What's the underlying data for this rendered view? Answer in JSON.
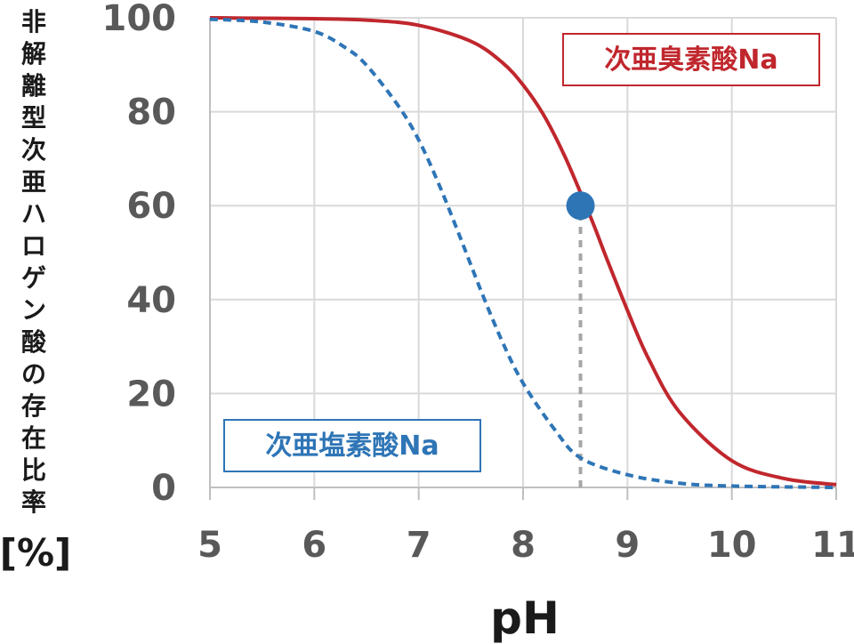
{
  "chart_data": {
    "type": "line",
    "xlabel": "pH",
    "ylabel": "非解離型次亜ハロゲン酸の存在比率",
    "yunit": "[%]",
    "xlim": [
      5,
      11
    ],
    "ylim": [
      0,
      100
    ],
    "xticks": [
      "5",
      "6",
      "7",
      "8",
      "9",
      "10",
      "11"
    ],
    "yticks": [
      "100",
      "80",
      "60",
      "40",
      "20",
      "0"
    ],
    "grid": true,
    "series": [
      {
        "name": "次亜臭素酸Na",
        "color": "#c0272d",
        "style": "solid",
        "x": [
          5.0,
          5.5,
          6.0,
          6.5,
          7.0,
          7.5,
          7.8,
          8.0,
          8.2,
          8.4,
          8.6,
          8.7,
          8.8,
          9.0,
          9.2,
          9.5,
          10.0,
          10.5,
          11.0
        ],
        "y": [
          100,
          99.9,
          99.8,
          99.5,
          98.4,
          95.0,
          90.5,
          85.7,
          79.2,
          70.5,
          60.1,
          54.6,
          48.8,
          37.7,
          27.5,
          16.0,
          5.7,
          1.9,
          0.6
        ]
      },
      {
        "name": "次亜塩素酸Na",
        "color": "#2e75b6",
        "style": "dashed",
        "x": [
          5.0,
          5.5,
          6.0,
          6.3,
          6.5,
          6.8,
          7.0,
          7.2,
          7.4,
          7.6,
          7.8,
          8.0,
          8.3,
          8.55,
          9.0,
          9.5,
          10.0,
          11.0
        ],
        "y": [
          99.7,
          99.1,
          97.1,
          93.6,
          89.9,
          81.4,
          74.0,
          64.2,
          53.1,
          41.7,
          31.1,
          22.2,
          12.4,
          6.3,
          2.7,
          0.9,
          0.3,
          0.0
        ]
      }
    ],
    "highlight_point": {
      "x": 8.55,
      "y": 60,
      "color": "#2e75b6"
    },
    "reference_line": {
      "x": 8.55,
      "from_y": 0,
      "to_y": 60,
      "color": "#a6a6a6",
      "style": "dashed"
    },
    "legend_boxes": [
      {
        "series": "次亜臭素酸Na",
        "placement": "top-right"
      },
      {
        "series": "次亜塩素酸Na",
        "placement": "bottom-left"
      }
    ]
  }
}
